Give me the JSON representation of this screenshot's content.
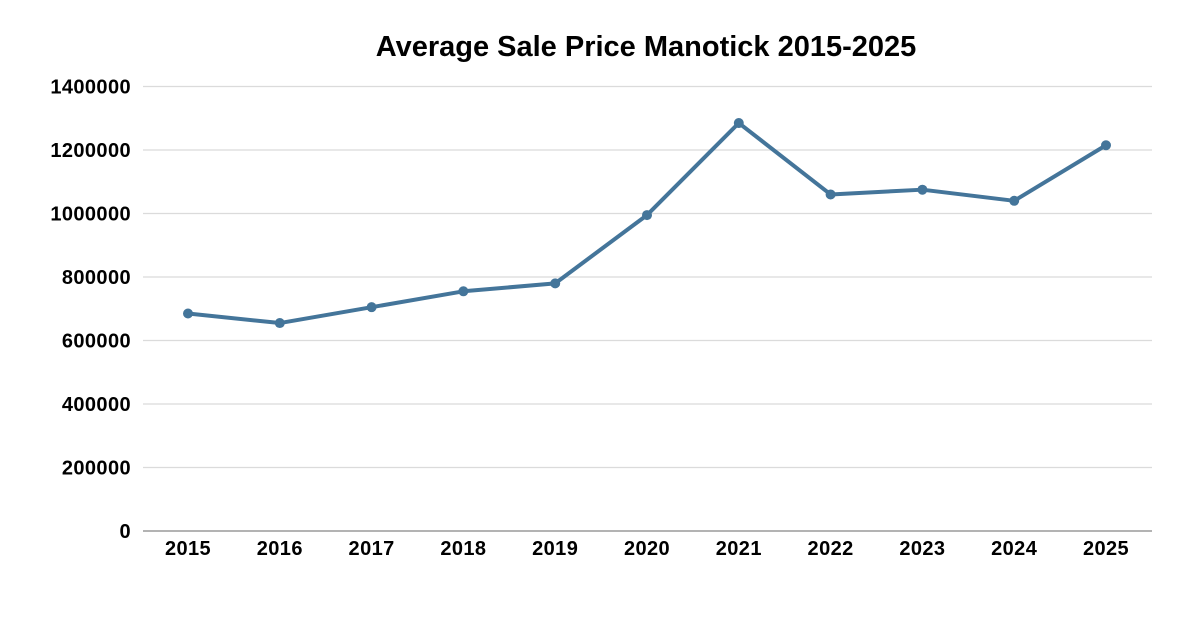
{
  "chart_data": {
    "type": "line",
    "title": "Average Sale Price Manotick 2015-2025",
    "categories": [
      "2015",
      "2016",
      "2017",
      "2018",
      "2019",
      "2020",
      "2021",
      "2022",
      "2023",
      "2024",
      "2025"
    ],
    "values": [
      685000,
      655000,
      705000,
      755000,
      780000,
      995000,
      1285000,
      1060000,
      1075000,
      1040000,
      1215000
    ],
    "xlabel": "",
    "ylabel": "",
    "ylim": [
      0,
      1400000
    ],
    "yticks": [
      0,
      200000,
      400000,
      600000,
      800000,
      1000000,
      1200000,
      1400000
    ],
    "ytick_labels": [
      "0",
      "200000",
      "400000",
      "600000",
      "800000",
      "1000000",
      "1200000",
      "1400000"
    ],
    "grid": true,
    "legend": false,
    "marker": "circle",
    "colors": {
      "line": "#44759A",
      "gridline": "#DBDBDB",
      "axis_line": "#A8A8A8",
      "text": "#000000",
      "background": "#FFFFFF"
    }
  }
}
